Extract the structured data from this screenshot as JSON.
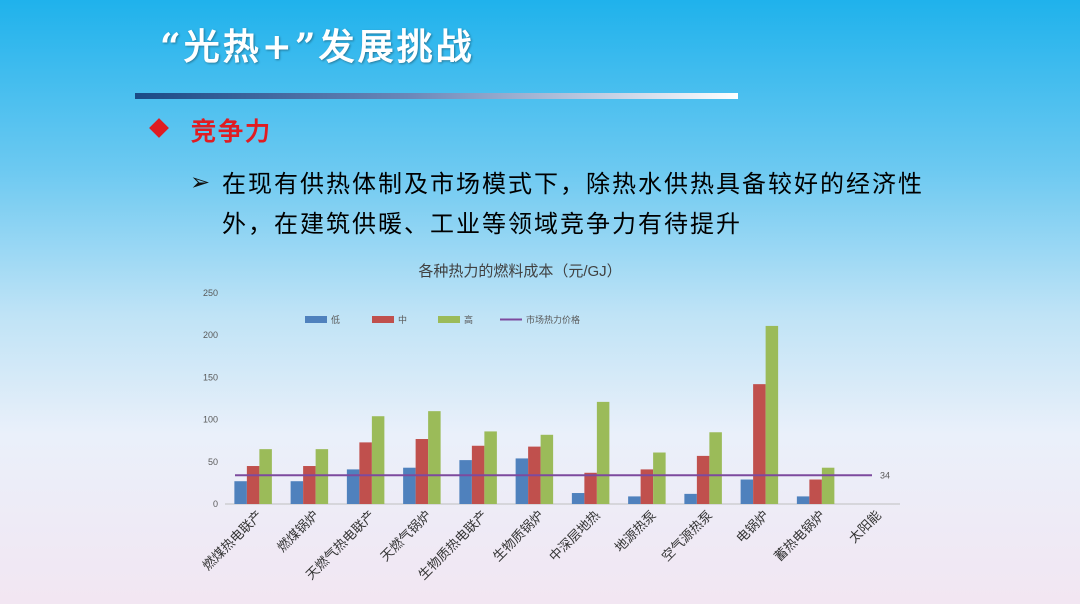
{
  "slide": {
    "title": "“光热+”发展挑战",
    "heading": "竞争力",
    "bullet_arrow": "➢",
    "body": "在现有供热体制及市场模式下，除热水供热具备较好的经济性外，在建筑供暖、工业等领域竞争力有待提升"
  },
  "colors": {
    "title_text": "#ffffff",
    "heading": "#e01c22",
    "series_low": "#4f81bd",
    "series_mid": "#c0504d",
    "series_high": "#9bbb59",
    "market_line": "#7d4a9e"
  },
  "chart_data": {
    "type": "bar",
    "title": "各种热力的燃料成本（元/GJ）",
    "xlabel": "",
    "ylabel": "",
    "ylim": [
      0,
      250
    ],
    "yticks": [
      0,
      50,
      100,
      150,
      200,
      250
    ],
    "grid": false,
    "legend_position": "top",
    "categories": [
      "燃煤热电联产",
      "燃煤锅炉",
      "天燃气热电联产",
      "天燃气锅炉",
      "生物质热电联产",
      "生物质锅炉",
      "中深层地热",
      "地源热泵",
      "空气源热泵",
      "电锅炉",
      "蓄热电锅炉",
      "太阳能"
    ],
    "series": [
      {
        "name": "低",
        "color": "#4f81bd",
        "values": [
          27,
          27,
          41,
          43,
          52,
          54,
          13,
          9,
          12,
          29,
          9,
          null
        ]
      },
      {
        "name": "中",
        "color": "#c0504d",
        "values": [
          45,
          45,
          73,
          77,
          69,
          68,
          37,
          41,
          57,
          142,
          29,
          null
        ]
      },
      {
        "name": "高",
        "color": "#9bbb59",
        "values": [
          65,
          65,
          104,
          110,
          86,
          82,
          121,
          61,
          85,
          211,
          43,
          null
        ]
      }
    ],
    "reference_line": {
      "name": "市场热力价格",
      "value": 34,
      "label": "34",
      "color": "#7d4a9e"
    }
  }
}
